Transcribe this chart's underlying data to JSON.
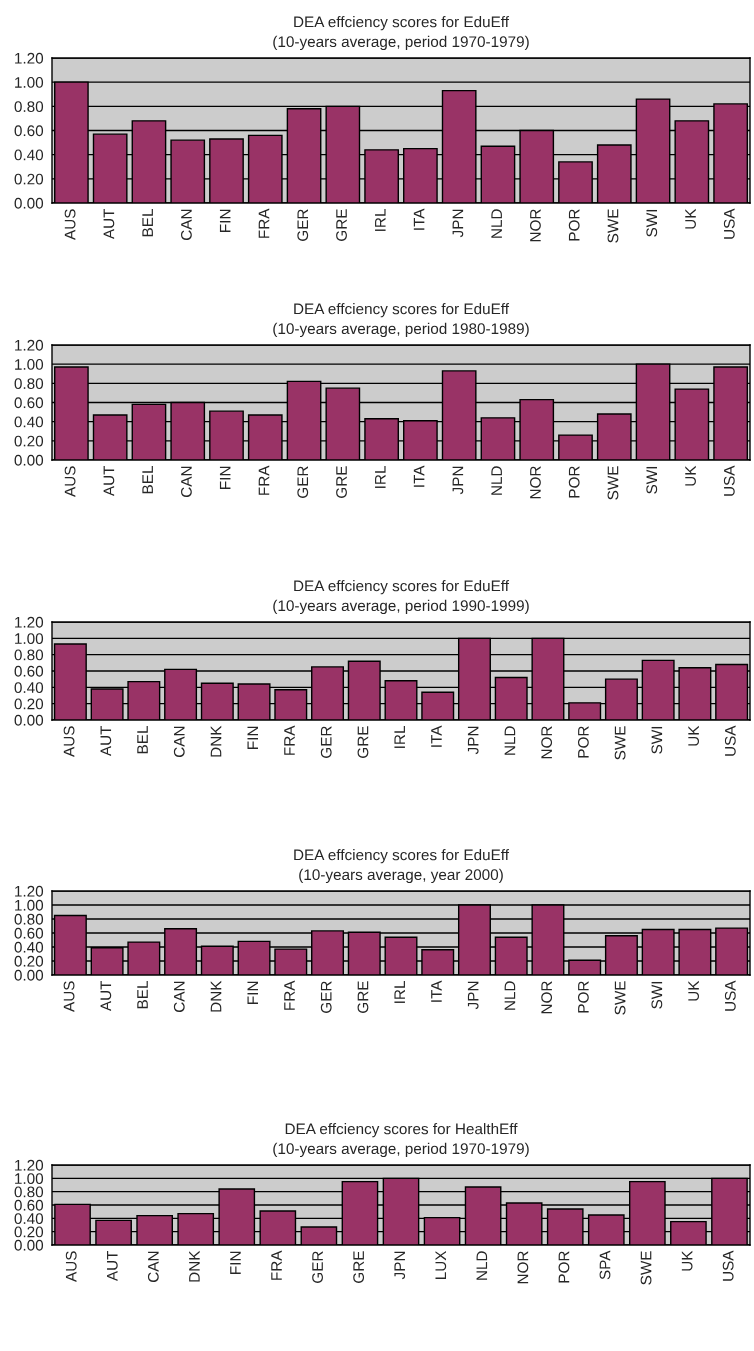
{
  "chart_data": [
    {
      "type": "bar",
      "title": "DEA effciency scores for EduEff",
      "subtitle": "(10-years average, period 1970-1979)",
      "categories": [
        "AUS",
        "AUT",
        "BEL",
        "CAN",
        "FIN",
        "FRA",
        "GER",
        "GRE",
        "IRL",
        "ITA",
        "JPN",
        "NLD",
        "NOR",
        "POR",
        "SWE",
        "SWI",
        "UK",
        "USA"
      ],
      "values": [
        1.0,
        0.57,
        0.68,
        0.52,
        0.53,
        0.56,
        0.78,
        0.8,
        0.44,
        0.45,
        0.93,
        0.47,
        0.6,
        0.34,
        0.48,
        0.86,
        0.68,
        0.82
      ],
      "color": "#993366",
      "ylim": [
        0,
        1.2
      ],
      "yticks": [
        {
          "value": 0,
          "label": "0.00"
        },
        {
          "value": 0.2,
          "label": "0.20"
        },
        {
          "value": 0.4,
          "label": "0.40"
        },
        {
          "value": 0.6,
          "label": "0.60"
        },
        {
          "value": 0.8,
          "label": "0.80"
        },
        {
          "value": 1.0,
          "label": "1.00"
        },
        {
          "value": 1.2,
          "label": "1.20"
        }
      ],
      "grid": "y"
    },
    {
      "type": "bar",
      "title": "DEA effciency scores for EduEff",
      "subtitle": "(10-years average, period 1980-1989)",
      "categories": [
        "AUS",
        "AUT",
        "BEL",
        "CAN",
        "FIN",
        "FRA",
        "GER",
        "GRE",
        "IRL",
        "ITA",
        "JPN",
        "NLD",
        "NOR",
        "POR",
        "SWE",
        "SWI",
        "UK",
        "USA"
      ],
      "values": [
        0.97,
        0.47,
        0.58,
        0.6,
        0.51,
        0.47,
        0.82,
        0.75,
        0.43,
        0.41,
        0.93,
        0.44,
        0.63,
        0.26,
        0.48,
        1.0,
        0.74,
        0.97
      ],
      "color": "#993366",
      "ylim": [
        0,
        1.2
      ],
      "yticks": [
        {
          "value": 0,
          "label": "0.00"
        },
        {
          "value": 0.2,
          "label": "0.20"
        },
        {
          "value": 0.4,
          "label": "0.40"
        },
        {
          "value": 0.6,
          "label": "0.60"
        },
        {
          "value": 0.8,
          "label": "0.80"
        },
        {
          "value": 1.0,
          "label": "1.00"
        },
        {
          "value": 1.2,
          "label": "1.20"
        }
      ],
      "grid": "y"
    },
    {
      "type": "bar",
      "title": "DEA effciency scores for EduEff",
      "subtitle": "(10-years average, period 1990-1999)",
      "categories": [
        "AUS",
        "AUT",
        "BEL",
        "CAN",
        "DNK",
        "FIN",
        "FRA",
        "GER",
        "GRE",
        "IRL",
        "ITA",
        "JPN",
        "NLD",
        "NOR",
        "POR",
        "SWE",
        "SWI",
        "UK",
        "USA"
      ],
      "values": [
        0.93,
        0.38,
        0.47,
        0.62,
        0.45,
        0.44,
        0.37,
        0.65,
        0.72,
        0.48,
        0.34,
        1.0,
        0.52,
        1.0,
        0.21,
        0.5,
        0.73,
        0.64,
        0.68
      ],
      "color": "#993366",
      "ylim": [
        0,
        1.2
      ],
      "yticks": [
        {
          "value": 0,
          "label": "0.00"
        },
        {
          "value": 0.2,
          "label": "0.20"
        },
        {
          "value": 0.4,
          "label": "0.40"
        },
        {
          "value": 0.6,
          "label": "0.60"
        },
        {
          "value": 0.8,
          "label": "0.80"
        },
        {
          "value": 1.0,
          "label": "1.00"
        },
        {
          "value": 1.2,
          "label": "1.20"
        }
      ],
      "grid": "y"
    },
    {
      "type": "bar",
      "title": "DEA effciency scores for EduEff",
      "subtitle": "(10-years average, year 2000)",
      "categories": [
        "AUS",
        "AUT",
        "BEL",
        "CAN",
        "DNK",
        "FIN",
        "FRA",
        "GER",
        "GRE",
        "IRL",
        "ITA",
        "JPN",
        "NLD",
        "NOR",
        "POR",
        "SWE",
        "SWI",
        "UK",
        "USA"
      ],
      "values": [
        0.85,
        0.39,
        0.47,
        0.66,
        0.41,
        0.48,
        0.37,
        0.63,
        0.61,
        0.54,
        0.36,
        1.0,
        0.54,
        1.0,
        0.21,
        0.56,
        0.65,
        0.65,
        0.67
      ],
      "color": "#993366",
      "ylim": [
        0,
        1.2
      ],
      "yticks": [
        {
          "value": 0,
          "label": "0.00"
        },
        {
          "value": 0.2,
          "label": "0.20"
        },
        {
          "value": 0.4,
          "label": "0.40"
        },
        {
          "value": 0.6,
          "label": "0.60"
        },
        {
          "value": 0.8,
          "label": "0.80"
        },
        {
          "value": 1.0,
          "label": "1.00"
        },
        {
          "value": 1.2,
          "label": "1.20"
        }
      ],
      "grid": "y"
    },
    {
      "type": "bar",
      "title": "DEA effciency scores for HealthEff",
      "subtitle": "(10-years average, period 1970-1979)",
      "categories": [
        "AUS",
        "AUT",
        "CAN",
        "DNK",
        "FIN",
        "FRA",
        "GER",
        "GRE",
        "JPN",
        "LUX",
        "NLD",
        "NOR",
        "POR",
        "SPA",
        "SWE",
        "UK",
        "USA"
      ],
      "values": [
        0.61,
        0.37,
        0.44,
        0.47,
        0.84,
        0.51,
        0.27,
        0.95,
        1.0,
        0.41,
        0.87,
        0.63,
        0.54,
        0.45,
        0.95,
        0.35,
        1.0
      ],
      "color": "#993366",
      "ylim": [
        0,
        1.2
      ],
      "yticks": [
        {
          "value": 0,
          "label": "0.00"
        },
        {
          "value": 0.2,
          "label": "0.20"
        },
        {
          "value": 0.4,
          "label": "0.40"
        },
        {
          "value": 0.6,
          "label": "0.60"
        },
        {
          "value": 0.8,
          "label": "0.80"
        },
        {
          "value": 1.0,
          "label": "1.00"
        },
        {
          "value": 1.2,
          "label": "1.20"
        }
      ],
      "grid": "y"
    }
  ]
}
